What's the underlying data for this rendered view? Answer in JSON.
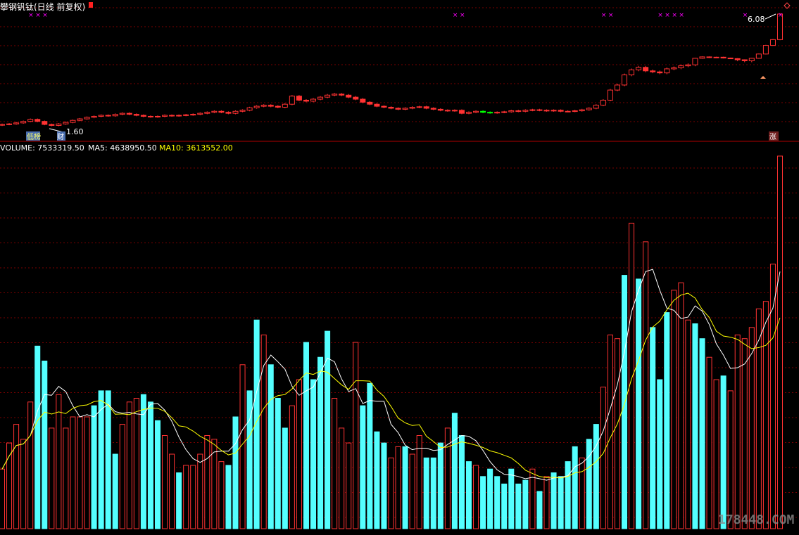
{
  "header": {
    "title": "攀钢钒钛(日线 前复权)"
  },
  "price_panel": {
    "high_label": "6.08",
    "low_label": "1.60",
    "badges": [
      "低榜",
      "财",
      "涨"
    ]
  },
  "volume_panel": {
    "legend": {
      "volume_label": "VOLUME: 7533319.50",
      "ma5_label": "MA5: 4638950.50",
      "ma10_label": "MA10: 3613552.00"
    }
  },
  "watermark": "178448.COM",
  "colors": {
    "up": "#ff3232",
    "down": "#54ffff",
    "ma5": "#ffffff",
    "ma10": "#ffff00",
    "grid": "#7a0000",
    "marker": "#ff00ff",
    "down_candle": "#00ff00"
  },
  "chart_data": [
    {
      "type": "candlestick",
      "title": "攀钢钒钛(日线 前复权)",
      "annotations": [
        "6.08",
        "1.60"
      ],
      "close": [
        1.62,
        1.63,
        1.65,
        1.68,
        1.72,
        1.68,
        1.62,
        1.6,
        1.63,
        1.66,
        1.7,
        1.73,
        1.76,
        1.78,
        1.8,
        1.79,
        1.82,
        1.84,
        1.82,
        1.8,
        1.78,
        1.77,
        1.78,
        1.8,
        1.79,
        1.8,
        1.81,
        1.82,
        1.84,
        1.86,
        1.88,
        1.86,
        1.84,
        1.88,
        1.9,
        1.95,
        1.98,
        2.0,
        1.98,
        1.96,
        2.02,
        2.18,
        2.1,
        2.08,
        2.12,
        2.16,
        2.2,
        2.22,
        2.2,
        2.16,
        2.12,
        2.06,
        2.02,
        1.98,
        1.96,
        1.94,
        1.92,
        1.94,
        1.96,
        1.97,
        1.94,
        1.92,
        1.9,
        1.89,
        1.9,
        1.84,
        1.86,
        1.88,
        1.86,
        1.85,
        1.86,
        1.87,
        1.89,
        1.88,
        1.9,
        1.91,
        1.9,
        1.89,
        1.9,
        1.88,
        1.88,
        1.89,
        1.91,
        1.94,
        2.0,
        2.1,
        2.3,
        2.4,
        2.6,
        2.7,
        2.75,
        2.68,
        2.66,
        2.64,
        2.72,
        2.74,
        2.78,
        2.8,
        3.0,
        3.1,
        3.05,
        3.08,
        3.02,
        2.98,
        2.9,
        2.88,
        3.0,
        3.3,
        3.9,
        4.3,
        6.08
      ],
      "volume_ratio": [
        0.16,
        0.23,
        0.28,
        0.24,
        0.34,
        0.49,
        0.45,
        0.27,
        0.36,
        0.27,
        0.3,
        0.3,
        0.3,
        0.33,
        0.37,
        0.37,
        0.2,
        0.28,
        0.34,
        0.35,
        0.36,
        0.34,
        0.29,
        0.25,
        0.2,
        0.15,
        0.17,
        0.17,
        0.2,
        0.25,
        0.24,
        0.18,
        0.17,
        0.3,
        0.44,
        0.37,
        0.56,
        0.52,
        0.44,
        0.35,
        0.27,
        0.33,
        0.4,
        0.5,
        0.4,
        0.46,
        0.53,
        0.35,
        0.27,
        0.23,
        0.5,
        0.33,
        0.39,
        0.26,
        0.23,
        0.19,
        0.22,
        0.22,
        0.2,
        0.25,
        0.19,
        0.19,
        0.23,
        0.27,
        0.31,
        0.25,
        0.18,
        0.17,
        0.14,
        0.16,
        0.14,
        0.12,
        0.16,
        0.12,
        0.13,
        0.16,
        0.1,
        0.14,
        0.15,
        0.14,
        0.18,
        0.22,
        0.19,
        0.24,
        0.28,
        0.38,
        0.52,
        0.51,
        0.68,
        0.82,
        0.67,
        0.77,
        0.54,
        0.4,
        0.58,
        0.64,
        0.66,
        0.56,
        0.55,
        0.51,
        0.46,
        0.4,
        0.41,
        0.37,
        0.52,
        0.51,
        0.54,
        0.59,
        0.61,
        0.71,
        1.0
      ],
      "volume_axis": "VOLUME",
      "series": [
        {
          "name": "MA5",
          "value": 4638950.5
        },
        {
          "name": "MA10",
          "value": 3613552.0
        }
      ],
      "volume_latest": 7533319.5
    }
  ]
}
